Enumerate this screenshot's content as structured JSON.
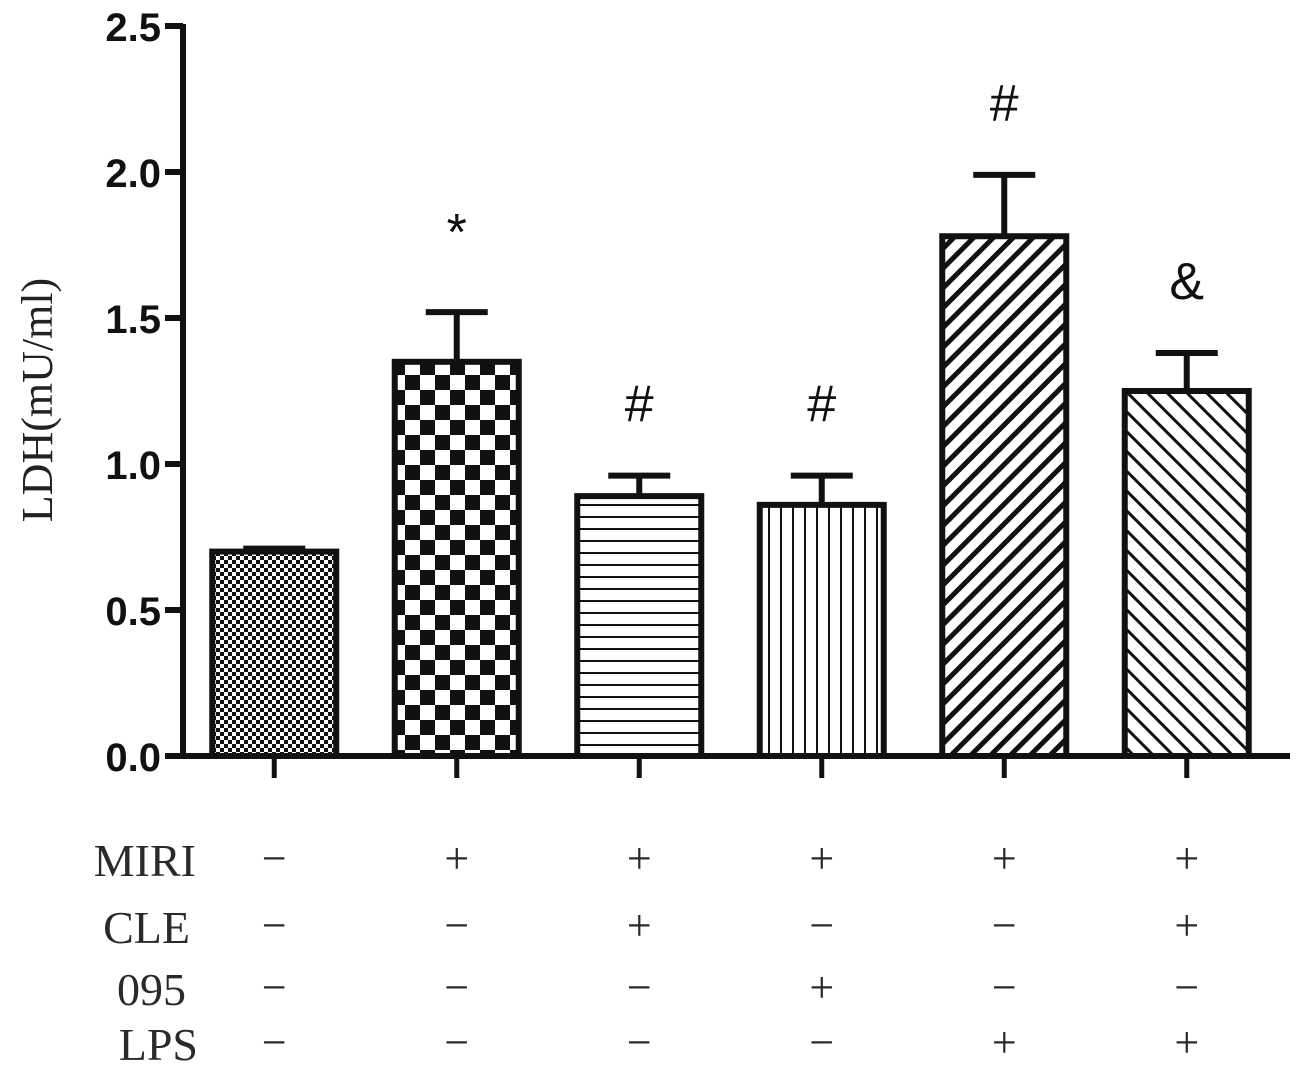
{
  "chart_data": {
    "type": "bar",
    "ylabel": "LDH(mU/ml)",
    "xlabel": "",
    "ylim": [
      0,
      2.5
    ],
    "y_ticks": [
      "0.0",
      "0.5",
      "1.0",
      "1.5",
      "2.0",
      "2.5"
    ],
    "grid": false,
    "bars": [
      {
        "value": 0.7,
        "error": 0.01,
        "annotation": "",
        "pattern": "fine-checker"
      },
      {
        "value": 1.35,
        "error": 0.17,
        "annotation": "*",
        "pattern": "coarse-checker"
      },
      {
        "value": 0.89,
        "error": 0.07,
        "annotation": "#",
        "pattern": "horizontal-lines"
      },
      {
        "value": 0.86,
        "error": 0.1,
        "annotation": "#",
        "pattern": "vertical-lines"
      },
      {
        "value": 1.78,
        "error": 0.21,
        "annotation": "#",
        "pattern": "diagonal-lines"
      },
      {
        "value": 1.25,
        "error": 0.13,
        "annotation": "&",
        "pattern": "backdiagonal-lines"
      }
    ],
    "conditions": [
      {
        "label": "MIRI",
        "signs": [
          "−",
          "+",
          "+",
          "+",
          "+",
          "+"
        ]
      },
      {
        "label": "CLE",
        "signs": [
          "−",
          "−",
          "+",
          "−",
          "−",
          "+"
        ]
      },
      {
        "label": "095",
        "signs": [
          "−",
          "−",
          "−",
          "+",
          "−",
          "−"
        ]
      },
      {
        "label": "LPS",
        "signs": [
          "−",
          "−",
          "−",
          "−",
          "+",
          "+"
        ]
      }
    ]
  }
}
